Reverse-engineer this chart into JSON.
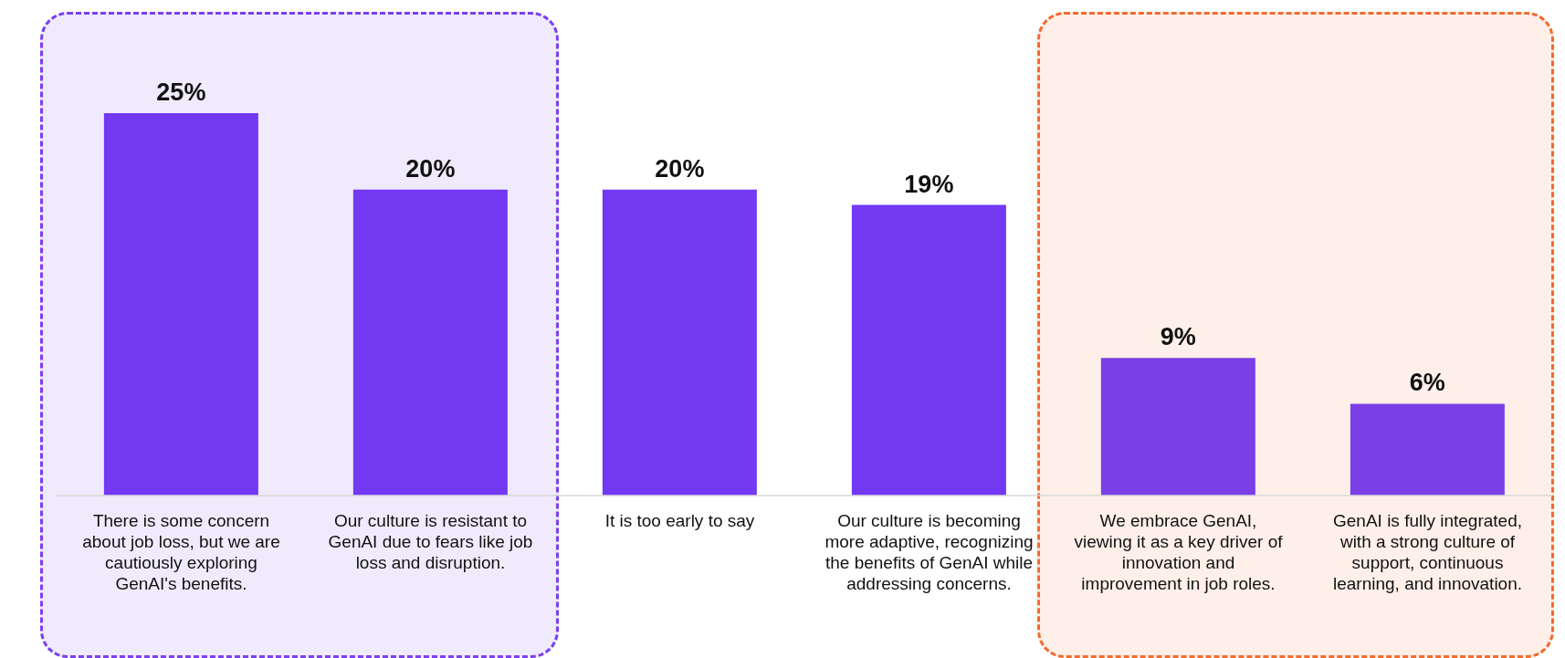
{
  "chart_data": {
    "type": "bar",
    "categories": [
      "There is some concern about job loss, but we are cautiously exploring GenAI's benefits.",
      "Our culture is resistant to GenAI due to fears like job loss and disruption.",
      "It is too early to say",
      "Our culture is becoming more adaptive, recognizing the benefits of GenAI while addressing concerns.",
      "We embrace GenAI, viewing it as a key driver of innovation and improvement in job roles.",
      "GenAI is fully integrated, with a strong culture of support, continuous learning, and innovation."
    ],
    "values": [
      25,
      20,
      20,
      19,
      9,
      6
    ],
    "colors": [
      "#7338f2",
      "#7338f2",
      "#7338f2",
      "#7338f2",
      "#7a3fe6",
      "#7a3fe6"
    ],
    "value_labels": [
      "25%",
      "20%",
      "20%",
      "19%",
      "9%",
      "6%"
    ],
    "bands": [
      {
        "axis": "x",
        "from": "There is some concern about job loss, but we are cautiously exploring GenAI's benefits.",
        "to": "Our culture is resistant to GenAI due to fears like job loss and disruption.",
        "label": null,
        "color": "#7a3ff0"
      },
      {
        "axis": "x",
        "from": "We embrace GenAI, viewing it as a key driver of innovation and improvement in job roles.",
        "to": "GenAI is fully integrated, with a strong culture of support, continuous learning, and innovation.",
        "label": null,
        "color": "#f26a2e"
      }
    ],
    "grid": false,
    "legend": false
  }
}
